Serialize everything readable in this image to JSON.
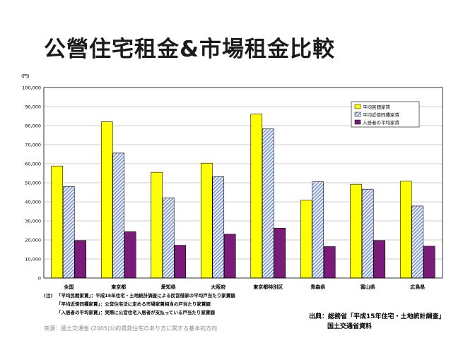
{
  "slide": {
    "title": "公營住宅租金&市場租金比較",
    "footer": "來源：國土交通省 (2005)公的賃貸住宅のあり方に関する基本的方向"
  },
  "chart_data": {
    "type": "bar",
    "title": "",
    "ylabel": "(円)",
    "ylim": [
      0,
      100000
    ],
    "ytick_labels": [
      "0",
      "10,000",
      "20,000",
      "30,000",
      "40,000",
      "50,000",
      "60,000",
      "70,000",
      "80,000",
      "90,000",
      "100,000"
    ],
    "categories": [
      "全国",
      "東京都",
      "愛知県",
      "大阪府",
      "東京都特別区",
      "青森県",
      "富山県",
      "広島県"
    ],
    "series": [
      {
        "name": "平均民間家賃",
        "color": "#ffff00",
        "pattern": "solid",
        "values": [
          58800,
          82000,
          55500,
          60300,
          86000,
          40800,
          49200,
          50800
        ]
      },
      {
        "name": "平均近傍同種家賃",
        "color": "#9aaee0",
        "pattern": "hatch",
        "values": [
          48000,
          65600,
          42100,
          53200,
          78300,
          50500,
          46600,
          37800
        ]
      },
      {
        "name": "入居者の平均家賃",
        "color": "#7a1b7a",
        "pattern": "solid",
        "values": [
          19700,
          24300,
          17200,
          23000,
          26200,
          16500,
          19700,
          16700
        ]
      }
    ],
    "legend_position": "top-right",
    "notes": {
      "label": "(注)",
      "lines": [
        "「平均民間家賃」：平成15年住宅・土地統計調査による民営借家の平均戸当たり家賃額",
        "「平均近傍同種家賃」：公営住宅法に定める市場家賃相当の戸当たり家賃額",
        "「入居者の平均家賃」：実際に公営住宅入居者が支払っている戸当たり家賃額"
      ]
    },
    "source": {
      "line1": "出典：総務省「平成15年住宅・土地統計調査」",
      "line2": "国土交通省資料"
    }
  }
}
